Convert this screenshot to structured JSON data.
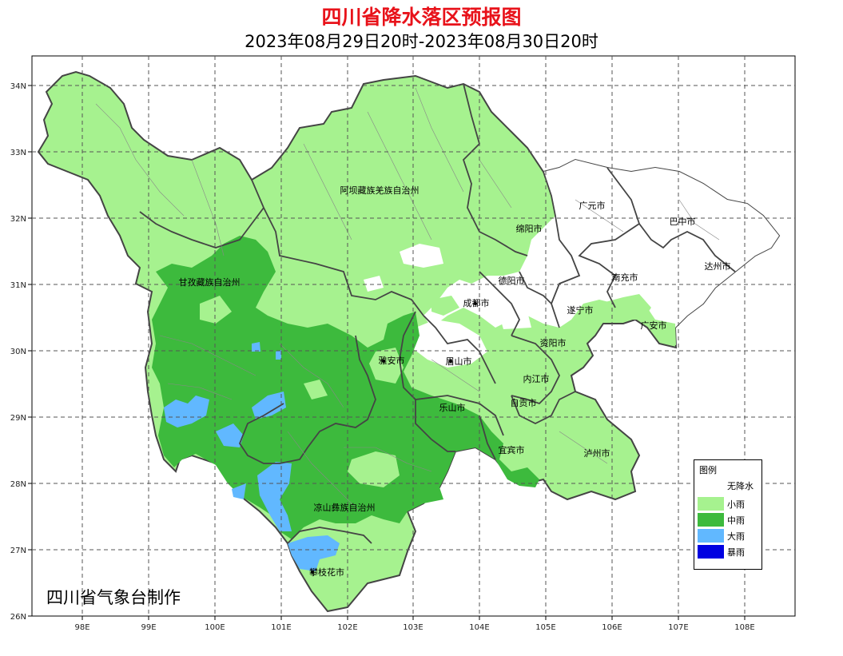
{
  "title": "四川省降水落区预报图",
  "subtitle": "2023年08月29日20时-2023年08月30日20时",
  "credit": "四川省气象台制作",
  "axes": {
    "x_ticks": [
      "98E",
      "99E",
      "100E",
      "101E",
      "102E",
      "103E",
      "104E",
      "105E",
      "106E",
      "107E",
      "108E"
    ],
    "y_ticks": [
      "34N",
      "33N",
      "32N",
      "31N",
      "30N",
      "29N",
      "28N",
      "27N",
      "26N"
    ]
  },
  "regions": [
    {
      "name": "阿坝藏族羌族自治州"
    },
    {
      "name": "甘孜藏族自治州"
    },
    {
      "name": "广元市"
    },
    {
      "name": "巴中市"
    },
    {
      "name": "绵阳市"
    },
    {
      "name": "达州市"
    },
    {
      "name": "德阳市"
    },
    {
      "name": "南充市"
    },
    {
      "name": "成都市"
    },
    {
      "name": "遂宁市"
    },
    {
      "name": "广安市"
    },
    {
      "name": "资阳市"
    },
    {
      "name": "雅安市"
    },
    {
      "name": "眉山市"
    },
    {
      "name": "内江市"
    },
    {
      "name": "自贡市"
    },
    {
      "name": "乐山市"
    },
    {
      "name": "宜宾市"
    },
    {
      "name": "泸州市"
    },
    {
      "name": "凉山彝族自治州"
    },
    {
      "name": "攀枝花市"
    }
  ],
  "legend": {
    "title": "图例",
    "items": [
      {
        "label": "无降水",
        "color": "#ffffff"
      },
      {
        "label": "小雨",
        "color": "#a6f28f"
      },
      {
        "label": "中雨",
        "color": "#3dba3d"
      },
      {
        "label": "大雨",
        "color": "#61b8ff"
      },
      {
        "label": "暴雨",
        "color": "#0000e1"
      }
    ]
  }
}
